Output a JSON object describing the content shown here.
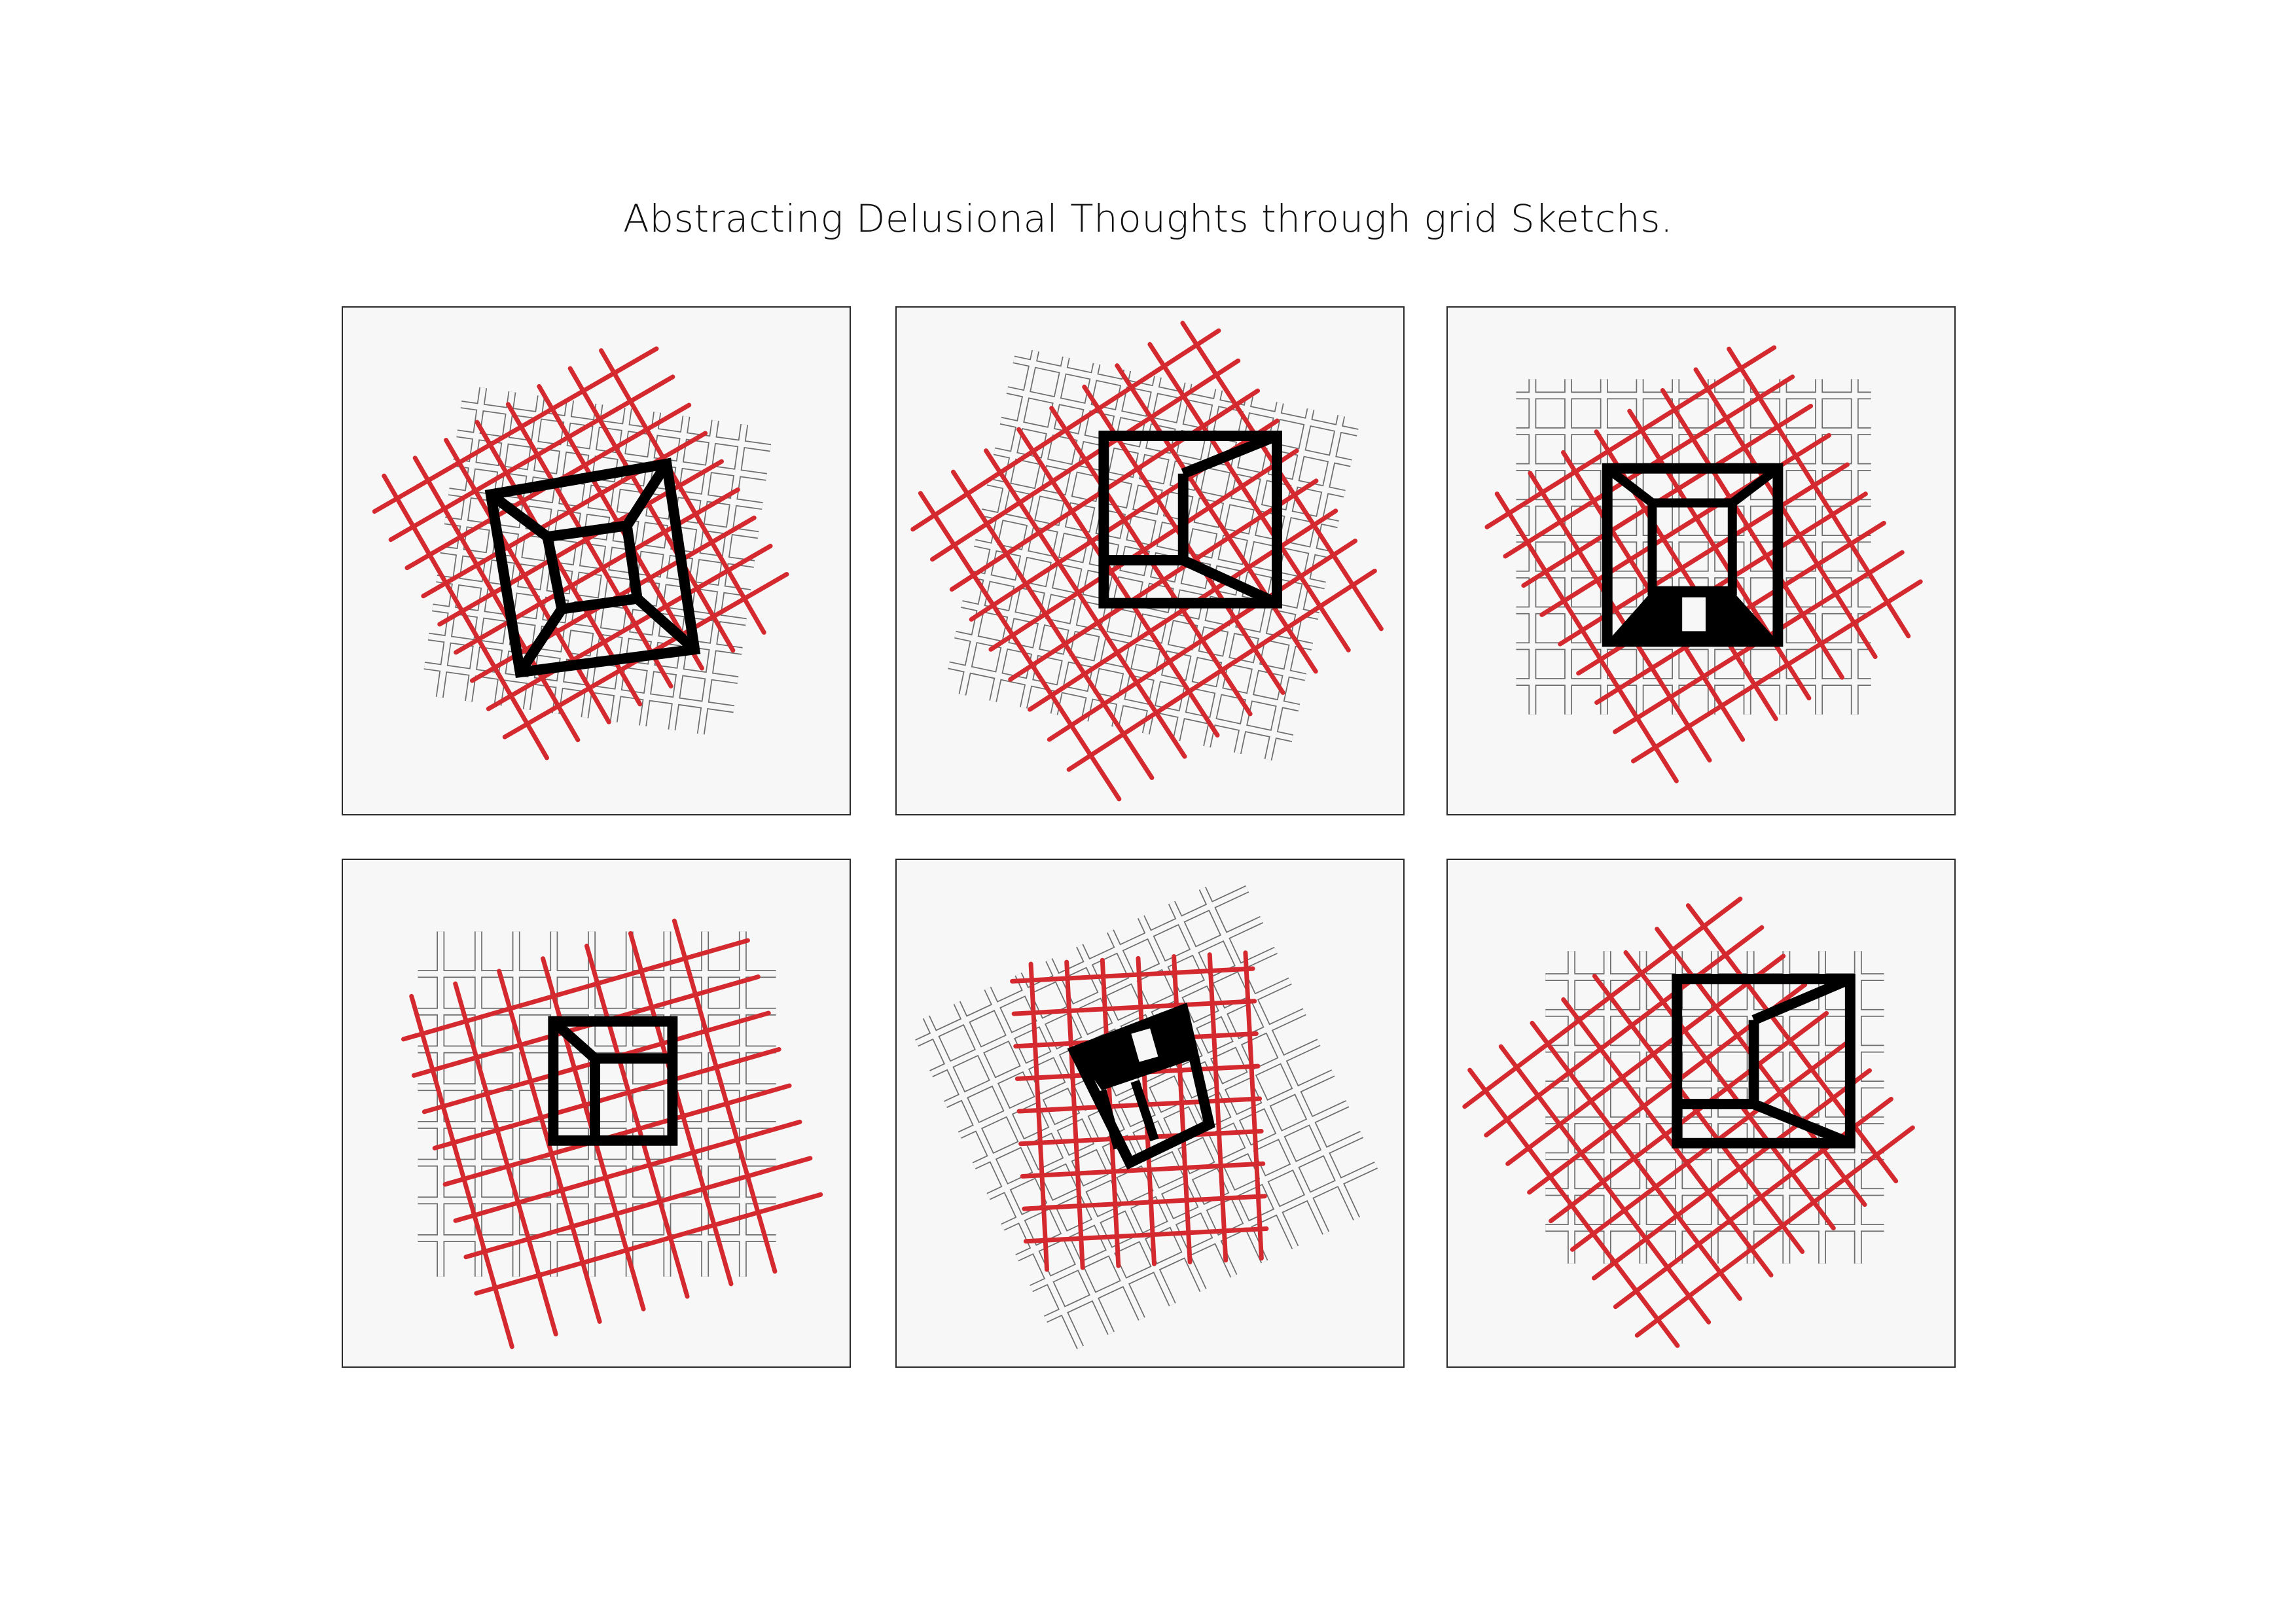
{
  "title": "Abstracting Delusional Thoughts through grid Sketchs.",
  "colors": {
    "background": "#ffffff",
    "panel_fill": "#f7f7f7",
    "panel_border": "#2a2a2a",
    "grid_outline": "#6e6e6e",
    "red_lines": "#d42a2f",
    "black_frame": "#000000"
  },
  "panels": [
    {
      "name": "sketch-1",
      "frame": "tunnel-square"
    },
    {
      "name": "sketch-2",
      "frame": "open-right-room"
    },
    {
      "name": "sketch-3",
      "frame": "room-with-doorway"
    },
    {
      "name": "sketch-4",
      "frame": "room-with-stem"
    },
    {
      "name": "sketch-5",
      "frame": "tilted-room-with-stem"
    },
    {
      "name": "sketch-6",
      "frame": "open-right-room"
    }
  ]
}
